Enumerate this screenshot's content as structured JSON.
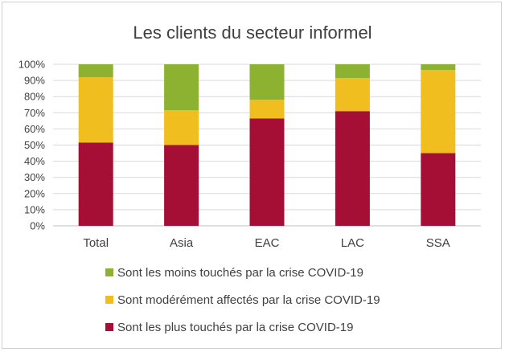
{
  "chart_data": {
    "type": "bar",
    "stacked": true,
    "title": "Les clients du secteur informel",
    "categories": [
      "Total",
      "Asia",
      "EAC",
      "LAC",
      "SSA"
    ],
    "series": [
      {
        "name": "Sont les plus touchés par la crise COVID-19",
        "color": "#A50F36",
        "values": [
          51.5,
          50,
          66.5,
          71,
          45
        ]
      },
      {
        "name": "Sont modérément affectés par la crise COVID-19",
        "color": "#F0BE1E",
        "values": [
          40.5,
          21.5,
          11.5,
          20.5,
          51.5
        ]
      },
      {
        "name": "Sont les moins touchés par la crise COVID-19",
        "color": "#8DB232",
        "values": [
          8,
          28.5,
          22,
          8.5,
          3.5
        ]
      }
    ],
    "legend_order": [
      2,
      1,
      0
    ],
    "yticks": [
      "0%",
      "10%",
      "20%",
      "30%",
      "40%",
      "50%",
      "60%",
      "70%",
      "80%",
      "90%",
      "100%"
    ],
    "ylim": [
      0,
      100
    ],
    "grid": true,
    "legend_position": "bottom"
  }
}
